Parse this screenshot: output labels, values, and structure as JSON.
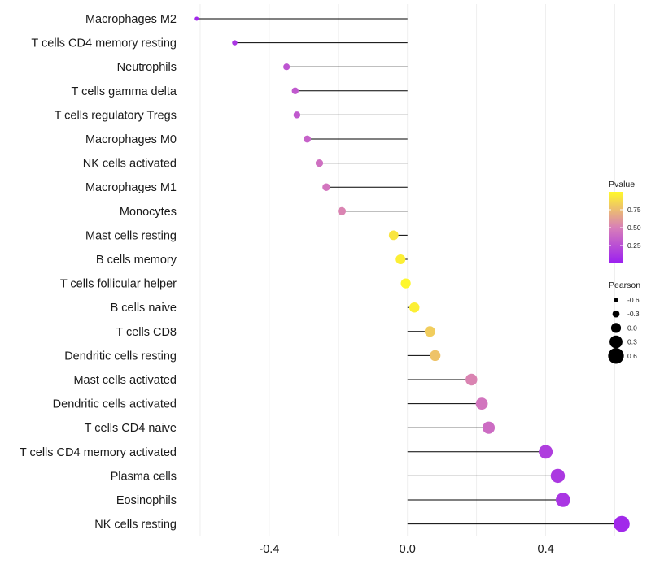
{
  "chart_data": {
    "type": "lollipop",
    "categories": [
      "Macrophages M2",
      "T cells CD4 memory resting",
      "Neutrophils",
      "T cells gamma delta",
      "T cells regulatory  Tregs",
      "Macrophages M0",
      "NK cells activated",
      "Macrophages M1",
      "Monocytes",
      "Mast cells resting",
      "B cells memory",
      "T cells follicular helper",
      "B cells naive",
      "T cells CD8",
      "Dendritic cells resting",
      "Mast cells activated",
      "Dendritic cells activated",
      "T cells CD4 naive",
      "T cells CD4 memory activated",
      "Plasma cells",
      "Eosinophils",
      "NK cells resting"
    ],
    "pearson": [
      -0.61,
      -0.5,
      -0.35,
      -0.325,
      -0.32,
      -0.29,
      -0.255,
      -0.235,
      -0.19,
      -0.04,
      -0.02,
      -0.005,
      0.02,
      0.065,
      0.08,
      0.185,
      0.215,
      0.235,
      0.4,
      0.435,
      0.45,
      0.62
    ],
    "pvalue": [
      0.05,
      0.12,
      0.28,
      0.3,
      0.3,
      0.35,
      0.42,
      0.45,
      0.52,
      0.92,
      0.96,
      0.99,
      0.96,
      0.82,
      0.78,
      0.52,
      0.45,
      0.4,
      0.16,
      0.13,
      0.12,
      0.05
    ],
    "x_ticks": [
      "-0.4",
      "0.0",
      "0.4"
    ],
    "x_tick_values": [
      -0.4,
      0.0,
      0.4
    ],
    "xlim": [
      -0.64,
      0.66
    ],
    "xlabel": "",
    "ylabel": "",
    "grid": true,
    "legend": {
      "pvalue": {
        "title": "Pvalue",
        "ticks": [
          "0.75",
          "0.50",
          "0.25"
        ],
        "tick_values": [
          0.75,
          0.5,
          0.25
        ],
        "range": [
          0.0,
          1.0
        ],
        "low_color": "#9b1ff0",
        "mid_color": "#d87fb8",
        "high_color": "#fff92a"
      },
      "pearson": {
        "title": "Pearson",
        "labels": [
          "-0.6",
          "-0.3",
          "0.0",
          "0.3",
          "0.6"
        ],
        "values": [
          -0.6,
          -0.3,
          0.0,
          0.3,
          0.6
        ]
      }
    },
    "segment_color": "#000000",
    "gridline_color": "#ebebeb"
  }
}
